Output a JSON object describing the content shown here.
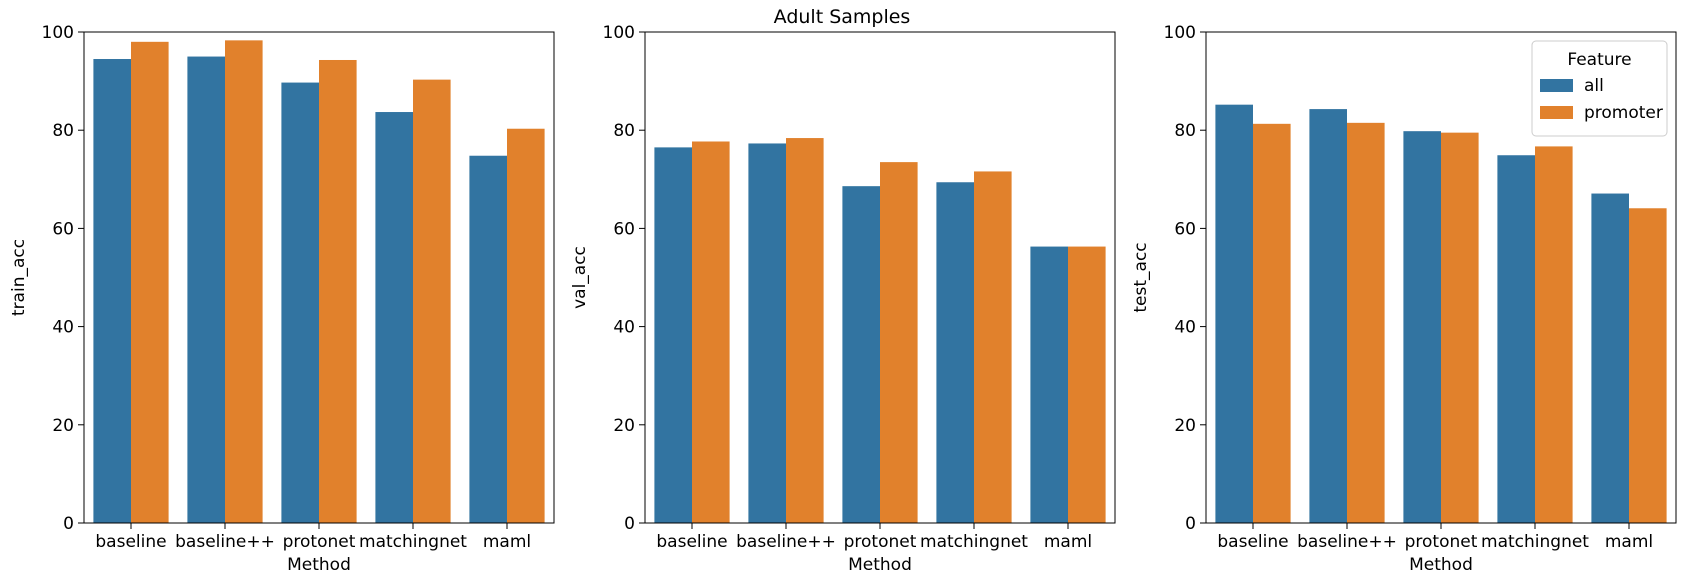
{
  "figure": {
    "suptitle": "Adult Samples"
  },
  "colors": {
    "all": "#3274a1",
    "promoter": "#e1812c"
  },
  "chart_data": [
    {
      "type": "bar",
      "title": "",
      "xlabel": "Method",
      "ylabel": "train_acc",
      "ylim": [
        0,
        100
      ],
      "yticks": [
        0,
        20,
        40,
        60,
        80,
        100
      ],
      "categories": [
        "baseline",
        "baseline++",
        "protonet",
        "matchingnet",
        "maml"
      ],
      "series": [
        {
          "name": "all",
          "values": [
            94.5,
            95.0,
            89.7,
            83.7,
            74.8
          ]
        },
        {
          "name": "promoter",
          "values": [
            98.0,
            98.3,
            94.3,
            90.3,
            80.3
          ]
        }
      ],
      "legend": null
    },
    {
      "type": "bar",
      "title": "",
      "xlabel": "Method",
      "ylabel": "val_acc",
      "ylim": [
        0,
        100
      ],
      "yticks": [
        0,
        20,
        40,
        60,
        80,
        100
      ],
      "categories": [
        "baseline",
        "baseline++",
        "protonet",
        "matchingnet",
        "maml"
      ],
      "series": [
        {
          "name": "all",
          "values": [
            76.5,
            77.3,
            68.6,
            69.4,
            56.3
          ]
        },
        {
          "name": "promoter",
          "values": [
            77.7,
            78.4,
            73.5,
            71.6,
            56.3
          ]
        }
      ],
      "legend": null
    },
    {
      "type": "bar",
      "title": "",
      "xlabel": "Method",
      "ylabel": "test_acc",
      "ylim": [
        0,
        100
      ],
      "yticks": [
        0,
        20,
        40,
        60,
        80,
        100
      ],
      "categories": [
        "baseline",
        "baseline++",
        "protonet",
        "matchingnet",
        "maml"
      ],
      "series": [
        {
          "name": "all",
          "values": [
            85.2,
            84.3,
            79.8,
            74.9,
            67.1
          ]
        },
        {
          "name": "promoter",
          "values": [
            81.3,
            81.5,
            79.5,
            76.7,
            64.1
          ]
        }
      ],
      "legend": {
        "title": "Feature",
        "position": "top-right"
      }
    }
  ]
}
